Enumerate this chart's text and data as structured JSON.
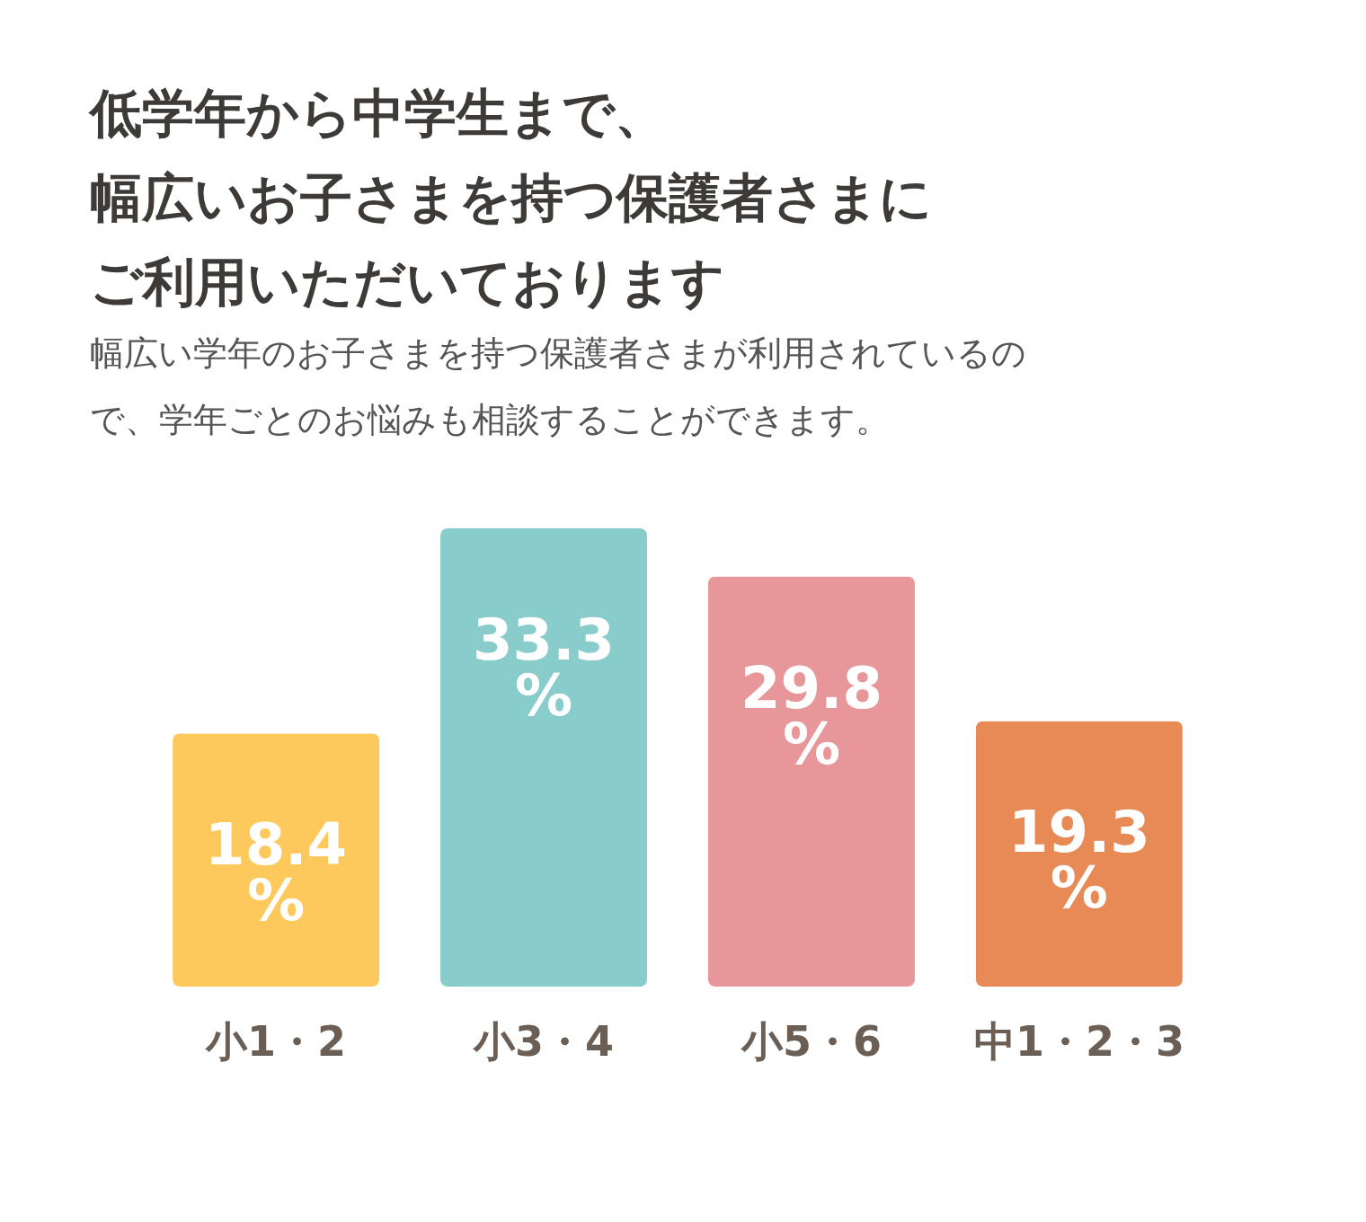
{
  "chart_data": {
    "type": "bar",
    "title": [
      "低学年から中学生まで、",
      "幅広いお子さまを持つ保護者さまに",
      "ご利用いただいております"
    ],
    "subtitle": [
      "幅広い学年のお子さまを持つ保護者さまが利用されているの",
      "で、学年ごとのお悩みも相談することができます。"
    ],
    "categories": [
      "小1・2",
      "小3・4",
      "小5・6",
      "中1・2・3"
    ],
    "values": [
      18.4,
      33.3,
      29.8,
      19.3
    ],
    "colors": [
      "#fdc95c",
      "#88cccb",
      "#e79699",
      "#e88a55"
    ],
    "value_labels": [
      "18.4\n%",
      "33.3\n%",
      "29.8\n%",
      "19.3\n%"
    ]
  }
}
